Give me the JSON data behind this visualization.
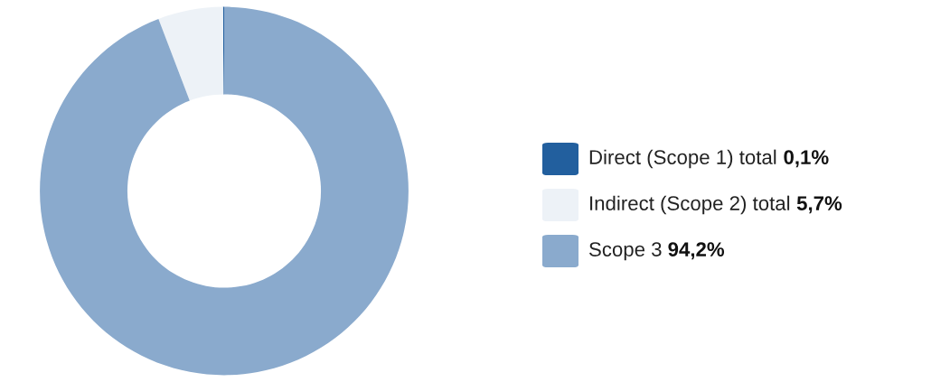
{
  "chart_data": {
    "type": "donut",
    "categories": [
      "Direct (Scope 1) total",
      "Indirect (Scope 2) total",
      "Scope 3"
    ],
    "values": [
      0.1,
      5.7,
      94.2
    ],
    "value_labels": [
      "0,1%",
      "5,7%",
      "94,2%"
    ],
    "colors": [
      "#225f9e",
      "#edf2f7",
      "#8aaacd"
    ],
    "legend": "right"
  }
}
